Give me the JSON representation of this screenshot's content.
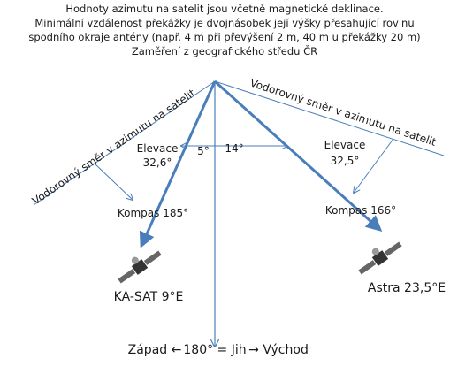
{
  "header": {
    "lines": [
      "Hodnoty azimutu na satelit jsou včetně magnetické deklinace.",
      "Minimální vzdálenost překážky je dvojnásobek její výšky přesahující rovinu",
      "spodního okraje antény (např. 4 m při převýšení 2 m, 40 m u překážky 20 m)",
      "Zaměření z geografického středu ČR"
    ]
  },
  "left": {
    "horizontal": "Vodorovný směr v azimutu na satelit",
    "elevation_label": "Elevace",
    "elevation": "32,6°",
    "angle": "5°",
    "compass": "Kompas 185°",
    "satellite": "KA-SAT 9°E"
  },
  "right": {
    "horizontal": "Vodorovný směr v azimutu na satelit",
    "elevation_label": "Elevace",
    "elevation": "32,5°",
    "angle": "14°",
    "compass": "Kompas 166°",
    "satellite": "Astra 23,5°E"
  },
  "bottom": {
    "west": "Západ ←",
    "south": "180° = Jih",
    "east": "→ Východ"
  }
}
